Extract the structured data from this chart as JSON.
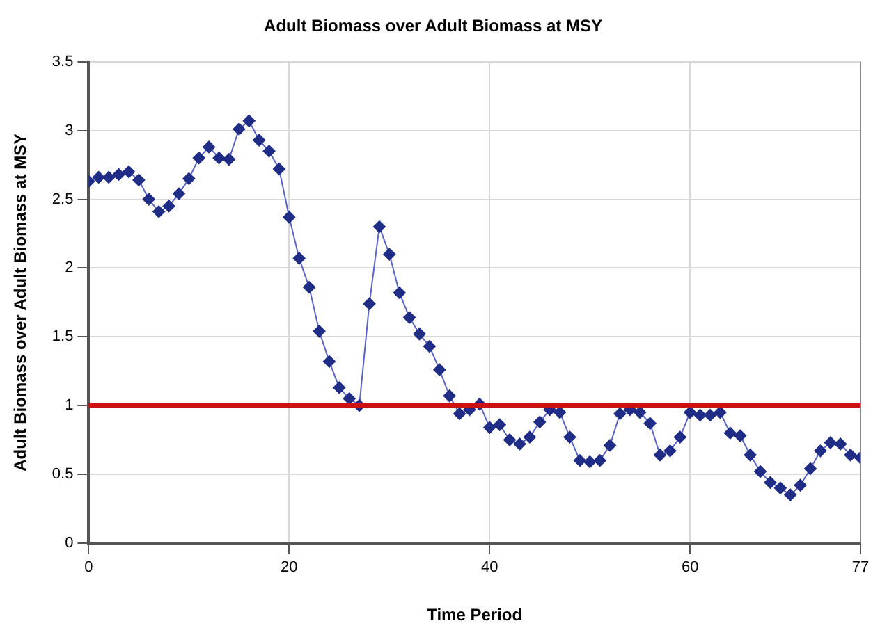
{
  "chart_data": {
    "type": "line",
    "title": "Adult Biomass over Adult Biomass at MSY",
    "xlabel": "Time Period",
    "ylabel": "Adult Biomass over Adult Biomass at MSY",
    "x": [
      0,
      1,
      2,
      3,
      4,
      5,
      6,
      7,
      8,
      9,
      10,
      11,
      12,
      13,
      14,
      15,
      16,
      17,
      18,
      19,
      20,
      21,
      22,
      23,
      24,
      25,
      26,
      27,
      28,
      29,
      30,
      31,
      32,
      33,
      34,
      35,
      36,
      37,
      38,
      39,
      40,
      41,
      42,
      43,
      44,
      45,
      46,
      47,
      48,
      49,
      50,
      51,
      52,
      53,
      54,
      55,
      56,
      57,
      58,
      59,
      60,
      61,
      62,
      63,
      64,
      65,
      66,
      67,
      68,
      69,
      70,
      71,
      72,
      73,
      74,
      75,
      76,
      77
    ],
    "series": [
      {
        "color": "#1f2d86",
        "values": [
          2.63,
          2.66,
          2.66,
          2.68,
          2.7,
          2.64,
          2.5,
          2.41,
          2.45,
          2.54,
          2.65,
          2.8,
          2.88,
          2.8,
          2.79,
          3.01,
          3.07,
          2.93,
          2.85,
          2.72,
          2.37,
          2.07,
          1.86,
          1.54,
          1.32,
          1.13,
          1.05,
          1.0,
          1.74,
          2.3,
          2.1,
          1.82,
          1.64,
          1.52,
          1.43,
          1.26,
          1.07,
          0.94,
          0.97,
          1.01,
          0.84,
          0.86,
          0.75,
          0.72,
          0.77,
          0.88,
          0.97,
          0.95,
          0.77,
          0.6,
          0.59,
          0.6,
          0.71,
          0.94,
          0.97,
          0.95,
          0.87,
          0.64,
          0.67,
          0.77,
          0.95,
          0.93,
          0.93,
          0.95,
          0.8,
          0.78,
          0.64,
          0.52,
          0.44,
          0.4,
          0.35,
          0.42,
          0.54,
          0.67,
          0.73,
          0.72,
          0.64,
          0.62
        ]
      }
    ],
    "xlim": [
      0,
      77
    ],
    "xticks": [
      0,
      20,
      40,
      60,
      77
    ],
    "ylim": [
      0,
      3.5
    ],
    "yticks": [
      0,
      0.5,
      1,
      1.5,
      2,
      2.5,
      3,
      3.5
    ],
    "ref_lines": [
      {
        "axis": "y",
        "value": 1,
        "color": "#cc1111"
      }
    ],
    "grid": true,
    "legend": false,
    "marker": "diamond",
    "line_style": "solid"
  }
}
